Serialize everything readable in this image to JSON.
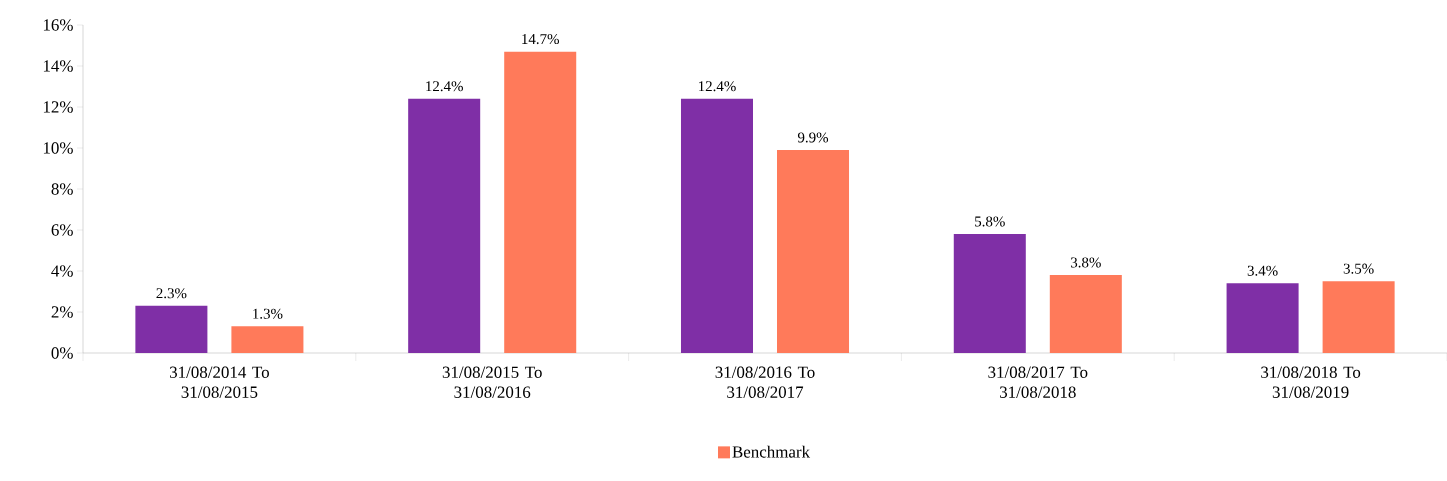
{
  "chart_data": {
    "type": "bar",
    "categories": [
      "31/08/2014 To 31/08/2015",
      "31/08/2015 To 31/08/2016",
      "31/08/2016 To 31/08/2017",
      "31/08/2017 To 31/08/2018",
      "31/08/2018 To 31/08/2019"
    ],
    "series": [
      {
        "color": "#7f2fa6",
        "values": [
          2.3,
          12.4,
          12.4,
          5.8,
          3.4
        ],
        "value_labels": [
          "2.3%",
          "12.4%",
          "12.4%",
          "5.8%",
          "3.4%"
        ]
      },
      {
        "name": "Benchmark",
        "color": "#ff7a5a",
        "values": [
          1.3,
          14.7,
          9.9,
          3.8,
          3.5
        ],
        "value_labels": [
          "1.3%",
          "14.7%",
          "9.9%",
          "3.8%",
          "3.5%"
        ]
      }
    ],
    "ylim": [
      0,
      16
    ],
    "yticks": [
      {
        "value": 0,
        "label": "0%"
      },
      {
        "value": 2,
        "label": "2%"
      },
      {
        "value": 4,
        "label": "4%"
      },
      {
        "value": 6,
        "label": "6%"
      },
      {
        "value": 8,
        "label": "8%"
      },
      {
        "value": 10,
        "label": "10%"
      },
      {
        "value": 12,
        "label": "12%"
      },
      {
        "value": 14,
        "label": "14%"
      },
      {
        "value": 16,
        "label": "16%"
      }
    ],
    "grid": false,
    "legend": "bottom"
  }
}
